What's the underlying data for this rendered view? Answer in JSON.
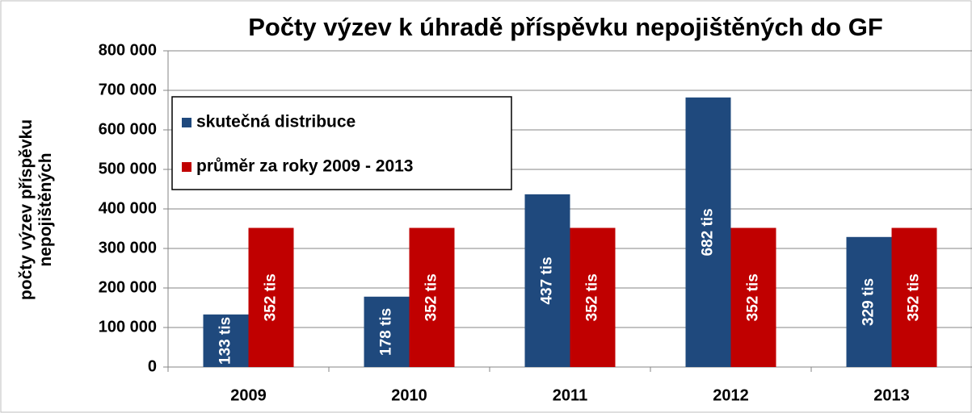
{
  "chart_data": {
    "type": "bar",
    "title": "Počty výzev k úhradě příspěvku nepojištěných do GF",
    "y_label": "počty výzev příspěvku nepojištěných",
    "categories": [
      "2009",
      "2010",
      "2011",
      "2012",
      "2013"
    ],
    "series": [
      {
        "name": "skutečná distribuce",
        "color": "#1f497d",
        "values": [
          133000,
          178000,
          437000,
          682000,
          329000
        ],
        "value_labels": [
          "133 tis",
          "178 tis",
          "437 tis",
          "682 tis",
          "329 tis"
        ]
      },
      {
        "name": "průměr za roky 2009 - 2013",
        "color": "#c00000",
        "values": [
          352000,
          352000,
          352000,
          352000,
          352000
        ],
        "value_labels": [
          "352 tis",
          "352 tis",
          "352 tis",
          "352 tis",
          "352 tis"
        ]
      }
    ],
    "ylim": [
      0,
      800000
    ],
    "yticks": [
      0,
      {
        "value": 100000,
        "label": "100 000"
      },
      {
        "value": 200000,
        "label": "200 000"
      },
      {
        "value": 300000,
        "label": "300 000"
      },
      {
        "value": 400000,
        "label": "400 000"
      },
      {
        "value": 500000,
        "label": "500 000"
      },
      {
        "value": 600000,
        "label": "600 000"
      },
      {
        "value": 700000,
        "label": "700 000"
      },
      {
        "value": 800000,
        "label": "800 000"
      }
    ],
    "grid": true,
    "legend": "upper left"
  }
}
